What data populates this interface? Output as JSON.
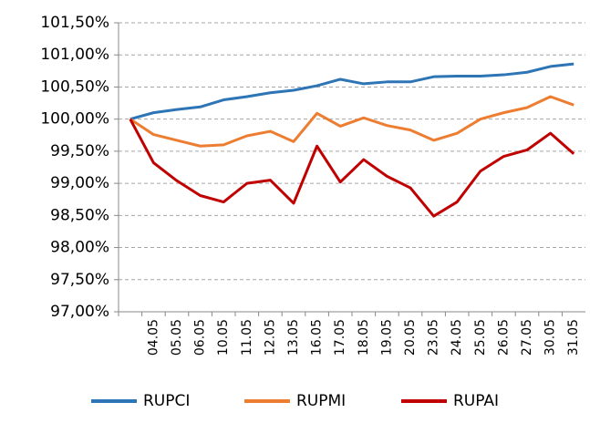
{
  "chart_data": {
    "type": "line",
    "categories": [
      null,
      "04.05",
      "05.05",
      "06.05",
      "10.05",
      "11.05",
      "12.05",
      "13.05",
      "16.05",
      "17.05",
      "18.05",
      "19.05",
      "20.05",
      "23.05",
      "24.05",
      "25.05",
      "26.05",
      "27.05",
      "30.05",
      "31.05"
    ],
    "series": [
      {
        "name": "RUPCI",
        "color": "#2e75b6",
        "values": [
          100,
          100.1,
          100.15,
          100.19,
          100.3,
          100.35,
          100.41,
          100.45,
          100.52,
          100.62,
          100.55,
          100.58,
          100.58,
          100.66,
          100.67,
          100.67,
          100.69,
          100.73,
          100.82,
          100.86
        ]
      },
      {
        "name": "RUPMI",
        "color": "#ed7d31",
        "values": [
          100,
          99.76,
          99.67,
          99.58,
          99.6,
          99.74,
          99.81,
          99.65,
          100.09,
          99.89,
          100.02,
          99.9,
          99.83,
          99.67,
          99.78,
          100.0,
          100.1,
          100.18,
          100.35,
          100.22
        ]
      },
      {
        "name": "RUPAI",
        "color": "#c00000",
        "values": [
          100,
          99.32,
          99.04,
          98.81,
          98.71,
          99.0,
          99.05,
          98.69,
          99.58,
          99.02,
          99.37,
          99.11,
          98.93,
          98.49,
          98.71,
          99.19,
          99.42,
          99.52,
          99.78,
          99.46
        ]
      }
    ],
    "ylim": [
      97,
      101.5
    ],
    "yticks": [
      {
        "value": 97,
        "label": "97,00%"
      },
      {
        "value": 97.5,
        "label": "97,50%"
      },
      {
        "value": 98,
        "label": "98,00%"
      },
      {
        "value": 98.5,
        "label": "98,50%"
      },
      {
        "value": 99,
        "label": "99,00%"
      },
      {
        "value": 99.5,
        "label": "99,50%"
      },
      {
        "value": 100,
        "label": "100,00%"
      },
      {
        "value": 100.5,
        "label": "100,50%"
      },
      {
        "value": 101,
        "label": "101,00%"
      },
      {
        "value": 101.5,
        "label": "101,50%"
      }
    ],
    "grid": true,
    "legend": "bottom"
  }
}
